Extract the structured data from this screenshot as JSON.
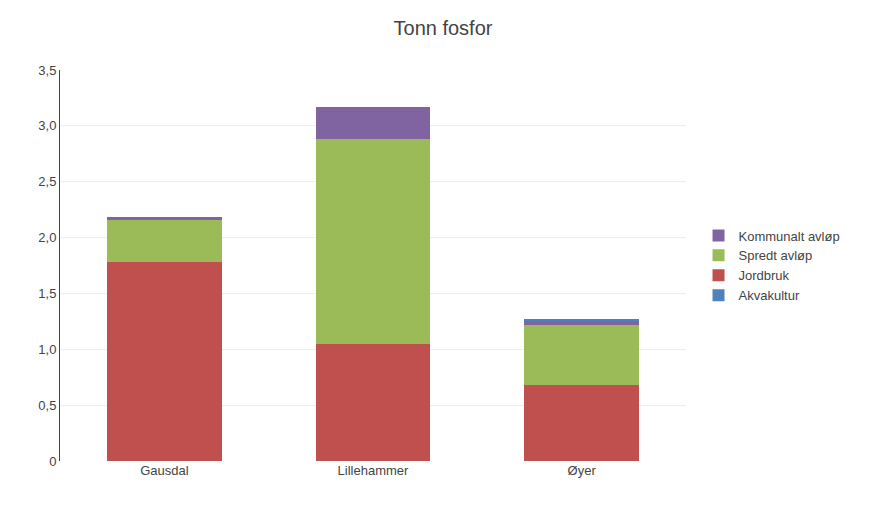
{
  "chart_data": {
    "type": "bar",
    "title": "Tonn fosfor",
    "categories": [
      "Gausdal",
      "Lillehammer",
      "Øyer"
    ],
    "series": [
      {
        "name": "Jordbruk",
        "color": "#C0504D",
        "values": [
          1.78,
          1.05,
          0.68
        ]
      },
      {
        "name": "Spredt avløp",
        "color": "#9BBB59",
        "values": [
          0.38,
          1.83,
          0.54
        ]
      },
      {
        "name": "Kommunalt avløp",
        "color": "#8064A2",
        "values": [
          0.02,
          0.29,
          0.03
        ]
      },
      {
        "name": "Akvakultur",
        "color": "#4F81BD",
        "values": [
          0.0,
          0.0,
          0.02
        ]
      }
    ],
    "stacked": true,
    "ylim": [
      0,
      3.5
    ],
    "yticks": [
      0,
      {
        "value": 0.5,
        "label": "0,5"
      },
      {
        "value": 1.0,
        "label": "1,0"
      },
      {
        "value": 1.5,
        "label": "1,5"
      },
      {
        "value": 2.0,
        "label": "2,0"
      },
      {
        "value": 2.5,
        "label": "2,5"
      },
      {
        "value": 3.0,
        "label": "3,0"
      },
      {
        "value": 3.5,
        "label": "3,5"
      }
    ],
    "grid": true,
    "legend": "right"
  }
}
